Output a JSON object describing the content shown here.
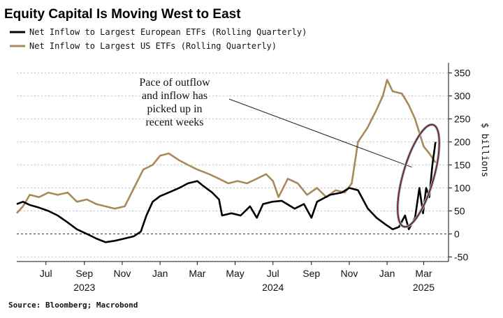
{
  "chart_data": {
    "type": "line",
    "title": "Equity Capital Is Moving West to East",
    "ylabel": "$ billions",
    "ylim": [
      -60,
      360
    ],
    "yticks": [
      -50,
      0,
      50,
      100,
      150,
      200,
      250,
      300,
      350
    ],
    "xlim": [
      "2023-05-15",
      "2025-04-10"
    ],
    "x_ticks": [
      {
        "label": "Jul",
        "date": "2023-07-01"
      },
      {
        "label": "Sep",
        "date": "2023-09-01"
      },
      {
        "label": "Nov",
        "date": "2023-11-01"
      },
      {
        "label": "Jan",
        "date": "2024-01-01"
      },
      {
        "label": "Mar",
        "date": "2024-03-01"
      },
      {
        "label": "May",
        "date": "2024-05-01"
      },
      {
        "label": "Jul",
        "date": "2024-07-01"
      },
      {
        "label": "Sep",
        "date": "2024-09-01"
      },
      {
        "label": "Nov",
        "date": "2024-11-01"
      },
      {
        "label": "Jan",
        "date": "2025-01-01"
      },
      {
        "label": "Mar",
        "date": "2025-03-01"
      }
    ],
    "year_labels": [
      {
        "label": "2023",
        "date": "2023-09-01"
      },
      {
        "label": "2024",
        "date": "2024-07-01"
      },
      {
        "label": "2025",
        "date": "2025-03-01"
      }
    ],
    "legend_placement": "top-left",
    "grid": "horizontal-dotted",
    "series": [
      {
        "name": "Net Inflow to Largest European ETFs (Rolling Quarterly)",
        "color": "#000000",
        "points": [
          [
            "2023-05-15",
            65
          ],
          [
            "2023-05-25",
            70
          ],
          [
            "2023-06-05",
            63
          ],
          [
            "2023-06-20",
            57
          ],
          [
            "2023-07-05",
            50
          ],
          [
            "2023-07-20",
            40
          ],
          [
            "2023-08-05",
            25
          ],
          [
            "2023-08-20",
            10
          ],
          [
            "2023-09-05",
            0
          ],
          [
            "2023-09-20",
            -10
          ],
          [
            "2023-10-05",
            -18
          ],
          [
            "2023-10-20",
            -15
          ],
          [
            "2023-11-05",
            -10
          ],
          [
            "2023-11-20",
            -5
          ],
          [
            "2023-12-01",
            5
          ],
          [
            "2023-12-10",
            40
          ],
          [
            "2023-12-20",
            70
          ],
          [
            "2024-01-01",
            82
          ],
          [
            "2024-01-15",
            90
          ],
          [
            "2024-02-01",
            100
          ],
          [
            "2024-02-15",
            110
          ],
          [
            "2024-03-01",
            115
          ],
          [
            "2024-03-10",
            105
          ],
          [
            "2024-03-25",
            90
          ],
          [
            "2024-04-05",
            75
          ],
          [
            "2024-04-10",
            40
          ],
          [
            "2024-04-25",
            45
          ],
          [
            "2024-05-10",
            40
          ],
          [
            "2024-05-25",
            60
          ],
          [
            "2024-06-05",
            35
          ],
          [
            "2024-06-15",
            65
          ],
          [
            "2024-06-30",
            70
          ],
          [
            "2024-07-15",
            72
          ],
          [
            "2024-08-05",
            55
          ],
          [
            "2024-08-20",
            65
          ],
          [
            "2024-09-01",
            35
          ],
          [
            "2024-09-10",
            70
          ],
          [
            "2024-10-01",
            85
          ],
          [
            "2024-10-20",
            90
          ],
          [
            "2024-11-01",
            100
          ],
          [
            "2024-11-15",
            95
          ],
          [
            "2024-12-01",
            55
          ],
          [
            "2024-12-15",
            35
          ],
          [
            "2024-12-30",
            20
          ],
          [
            "2025-01-10",
            10
          ],
          [
            "2025-01-20",
            15
          ],
          [
            "2025-01-30",
            40
          ],
          [
            "2025-02-05",
            10
          ],
          [
            "2025-02-15",
            35
          ],
          [
            "2025-02-22",
            100
          ],
          [
            "2025-02-28",
            45
          ],
          [
            "2025-03-05",
            100
          ],
          [
            "2025-03-10",
            80
          ],
          [
            "2025-03-15",
            150
          ],
          [
            "2025-03-20",
            200
          ]
        ]
      },
      {
        "name": "Net Inflow to Largest US ETFs (Rolling Quarterly)",
        "color": "#a88a5a",
        "points": [
          [
            "2023-05-15",
            45
          ],
          [
            "2023-05-25",
            60
          ],
          [
            "2023-06-05",
            85
          ],
          [
            "2023-06-20",
            80
          ],
          [
            "2023-07-05",
            90
          ],
          [
            "2023-07-20",
            85
          ],
          [
            "2023-08-05",
            90
          ],
          [
            "2023-08-20",
            70
          ],
          [
            "2023-09-05",
            75
          ],
          [
            "2023-09-20",
            65
          ],
          [
            "2023-10-05",
            60
          ],
          [
            "2023-10-20",
            55
          ],
          [
            "2023-11-05",
            60
          ],
          [
            "2023-11-20",
            100
          ],
          [
            "2023-12-05",
            140
          ],
          [
            "2023-12-20",
            150
          ],
          [
            "2024-01-01",
            170
          ],
          [
            "2024-01-15",
            175
          ],
          [
            "2024-02-01",
            160
          ],
          [
            "2024-02-15",
            150
          ],
          [
            "2024-03-01",
            140
          ],
          [
            "2024-03-20",
            130
          ],
          [
            "2024-04-05",
            120
          ],
          [
            "2024-04-20",
            110
          ],
          [
            "2024-05-05",
            115
          ],
          [
            "2024-05-20",
            110
          ],
          [
            "2024-06-05",
            120
          ],
          [
            "2024-06-20",
            130
          ],
          [
            "2024-07-01",
            115
          ],
          [
            "2024-07-10",
            80
          ],
          [
            "2024-07-25",
            120
          ],
          [
            "2024-08-10",
            110
          ],
          [
            "2024-08-25",
            85
          ],
          [
            "2024-09-10",
            100
          ],
          [
            "2024-09-25",
            80
          ],
          [
            "2024-10-10",
            95
          ],
          [
            "2024-10-25",
            90
          ],
          [
            "2024-11-05",
            110
          ],
          [
            "2024-11-15",
            200
          ],
          [
            "2024-11-30",
            230
          ],
          [
            "2024-12-15",
            270
          ],
          [
            "2024-12-25",
            300
          ],
          [
            "2025-01-01",
            335
          ],
          [
            "2025-01-10",
            310
          ],
          [
            "2025-01-25",
            305
          ],
          [
            "2025-02-05",
            280
          ],
          [
            "2025-02-15",
            250
          ],
          [
            "2025-02-22",
            220
          ],
          [
            "2025-03-01",
            190
          ],
          [
            "2025-03-10",
            175
          ],
          [
            "2025-03-20",
            155
          ]
        ]
      }
    ],
    "annotations": [
      {
        "lines": [
          "Pace of outflow",
          "and inflow has",
          "picked up in",
          "recent weeks"
        ],
        "points_to": [
          "2025-02-10",
          145
        ]
      }
    ],
    "source": "Source: Bloomberg; Macrobond"
  }
}
